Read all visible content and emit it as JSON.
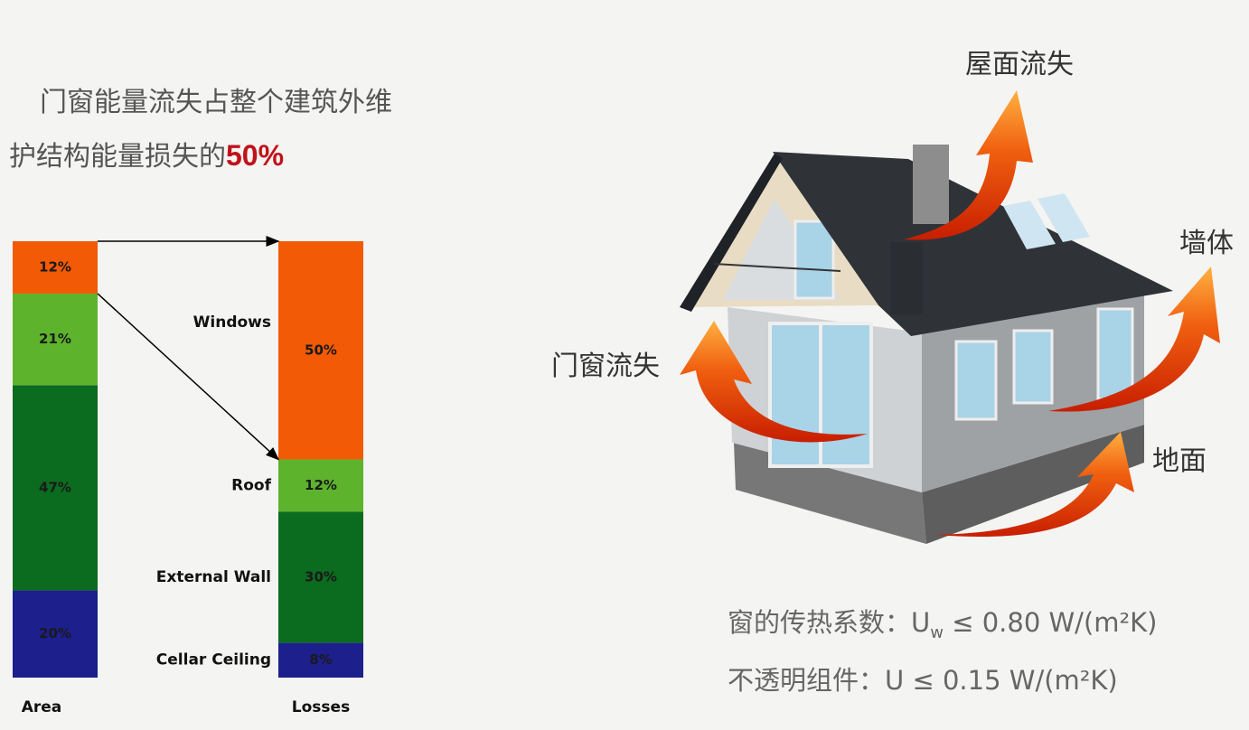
{
  "heading": {
    "line1": "门窗能量流失占整个建筑外维",
    "line2": "护结构能量损失的",
    "highlight": "50%"
  },
  "chart_data": {
    "type": "bar",
    "stacked": true,
    "categories": [
      "Area",
      "Losses"
    ],
    "ylim": [
      0,
      100
    ],
    "series": [
      {
        "name": "Cellar Ceiling",
        "color": "#1c1f8c",
        "values": [
          20,
          8
        ],
        "value_labels": [
          "20%",
          "8%"
        ]
      },
      {
        "name": "External Wall",
        "color": "#0b6b1f",
        "values": [
          47,
          30
        ],
        "value_labels": [
          "47%",
          "30%"
        ]
      },
      {
        "name": "Roof",
        "color": "#5db42c",
        "values": [
          21,
          12
        ],
        "value_labels": [
          "21%",
          "12%"
        ]
      },
      {
        "name": "Windows",
        "color": "#f25a05",
        "values": [
          12,
          50
        ],
        "value_labels": [
          "12%",
          "50%"
        ]
      }
    ]
  },
  "house_labels": {
    "roof": "屋面流失",
    "wall": "墙体",
    "windows": "门窗流失",
    "ground": "地面"
  },
  "formulas": [
    {
      "label": "窗的传热系数：",
      "symbol": "U",
      "subscript": "w",
      "relation": "≤  0.80 W/(m²K)"
    },
    {
      "label": "不透明组件：",
      "symbol": "U",
      "relation": "≤  0.15 W/(m²K)"
    }
  ]
}
